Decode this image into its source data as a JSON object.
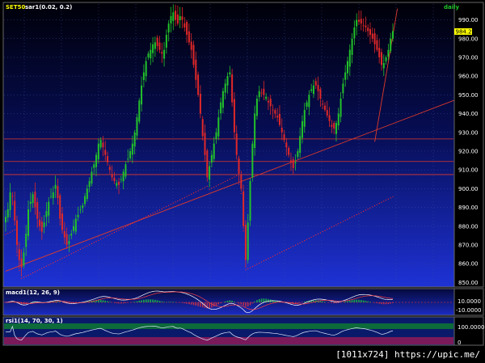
{
  "credit": "[1011x724] https://upic.me/",
  "colors": {
    "up": "#22c22a",
    "down": "#e02828",
    "sar": "#ff2a2a",
    "trend": "#e03a2a",
    "bg_top": "#000010",
    "bg_bottom": "#1a2fd0"
  },
  "chart_data": [
    {
      "type": "candlestick",
      "symbol": "SET50",
      "indicator_label": "sar1(0.02, 0.2)",
      "period": "daily",
      "last_price": "984.23",
      "ylim": [
        848,
        998
      ],
      "yticks": [
        850,
        860,
        870,
        880,
        890,
        900,
        910,
        920,
        930,
        940,
        950,
        960,
        970,
        980,
        990
      ],
      "ytick_labels": [
        "850.00",
        "860.00",
        "870.00",
        "880.00",
        "890.00",
        "900.00",
        "910.00",
        "920.00",
        "930.00",
        "940.00",
        "950.00",
        "960.00",
        "970.00",
        "980.00",
        "990.00"
      ],
      "horizontal_lines": [
        926.5,
        914.5,
        907.5
      ],
      "trendlines": [
        {
          "from": [
            0,
            856
          ],
          "to": [
            200,
            948
          ]
        },
        {
          "from": [
            163,
            925
          ],
          "to": [
            173,
            996
          ]
        }
      ],
      "x_count": 172,
      "close_series": [
        885,
        889,
        898,
        896,
        883,
        870,
        862,
        858,
        866,
        876,
        889,
        893,
        897,
        890,
        884,
        880,
        877,
        882,
        888,
        893,
        896,
        898,
        902,
        895,
        884,
        878,
        874,
        870,
        872,
        876,
        880,
        884,
        886,
        889,
        891,
        896,
        900,
        904,
        909,
        913,
        918,
        924,
        926,
        922,
        918,
        914,
        910,
        906,
        904,
        903,
        902,
        905,
        909,
        913,
        916,
        920,
        924,
        930,
        938,
        947,
        955,
        962,
        968,
        972,
        974,
        977,
        978,
        976,
        974,
        972,
        974,
        982,
        988,
        992,
        994,
        990,
        988,
        992,
        990,
        986,
        982,
        978,
        974,
        966,
        958,
        950,
        940,
        928,
        918,
        906,
        912,
        918,
        924,
        930,
        938,
        946,
        952,
        956,
        960,
        962,
        946,
        930,
        918,
        908,
        900,
        880,
        862,
        882,
        904,
        924,
        940,
        948,
        952,
        951,
        950,
        949,
        946,
        944,
        942,
        940,
        938,
        934,
        930,
        926,
        922,
        918,
        914,
        911,
        914,
        920,
        928,
        936,
        942,
        946,
        950,
        953,
        955,
        955,
        952,
        948,
        945,
        942,
        939,
        936,
        933,
        932,
        935,
        940,
        948,
        956,
        962,
        968,
        974,
        980,
        986,
        990,
        989,
        988,
        987,
        986,
        984,
        982,
        980,
        977,
        974,
        970,
        966,
        967,
        970,
        974,
        980,
        984
      ]
    },
    {
      "type": "line",
      "name": "macd1(12, 26, 9)",
      "ytick_labels": [
        "10.0000",
        "-10.0000"
      ]
    },
    {
      "type": "line",
      "name": "rsi1(14, 70, 30, 1)",
      "ytick_labels": [
        "100.0000",
        "0"
      ]
    }
  ]
}
